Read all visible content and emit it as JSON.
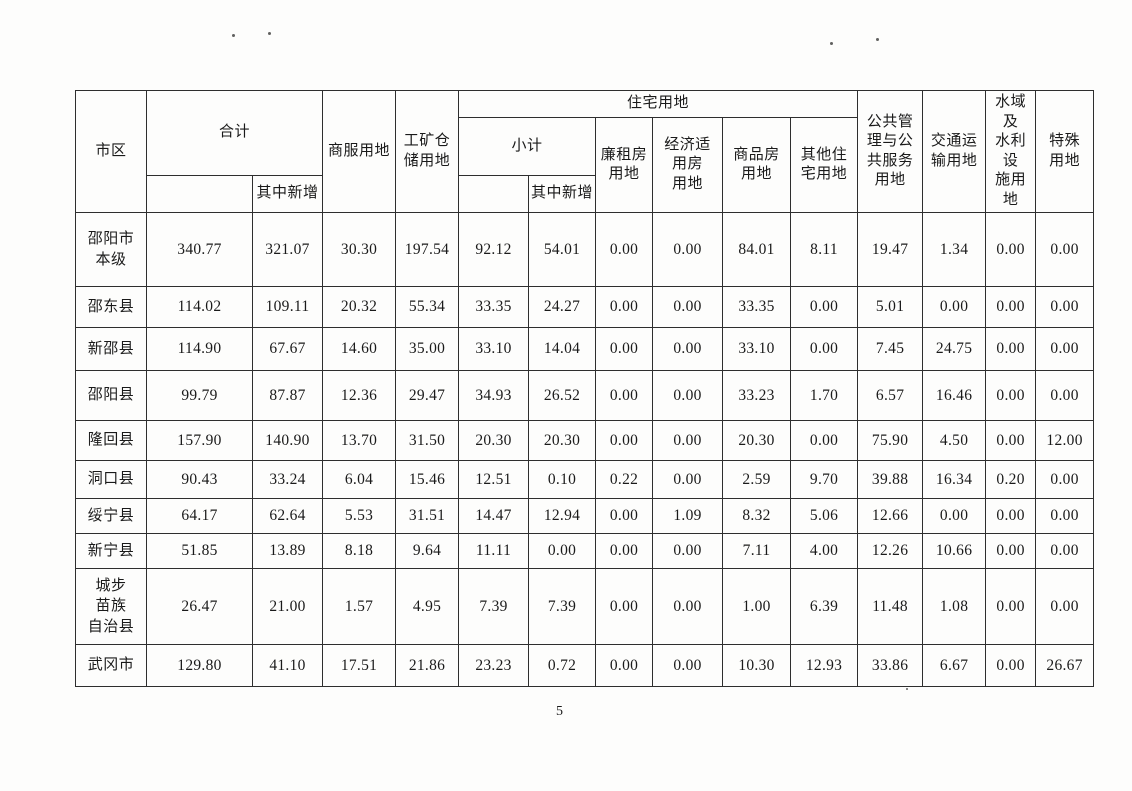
{
  "page": {
    "number": "5"
  },
  "table": {
    "header": {
      "region": "市区",
      "total": "合计",
      "total_new": "其中新增",
      "commercial": "商服用地",
      "industrial_storage": "工矿仓\n储用地",
      "residential": "住宅用地",
      "residential_subtotal": "小计",
      "residential_new": "其中新增",
      "low_rent_housing": "廉租房\n用地",
      "affordable_housing": "经济适\n用房\n用地",
      "commodity_housing": "商品房\n用地",
      "other_residential": "其他住\n宅用地",
      "public_admin_service": "公共管\n理与公\n共服务\n用地",
      "transportation": "交通运\n输用地",
      "water_facilities": "水域及\n水利设\n施用地",
      "special": "特殊\n用地"
    },
    "rows": [
      {
        "name": "邵阳市\n本级",
        "values": [
          "340.77",
          "321.07",
          "30.30",
          "197.54",
          "92.12",
          "54.01",
          "0.00",
          "0.00",
          "84.01",
          "8.11",
          "19.47",
          "1.34",
          "0.00",
          "0.00"
        ]
      },
      {
        "name": "邵东县",
        "values": [
          "114.02",
          "109.11",
          "20.32",
          "55.34",
          "33.35",
          "24.27",
          "0.00",
          "0.00",
          "33.35",
          "0.00",
          "5.01",
          "0.00",
          "0.00",
          "0.00"
        ]
      },
      {
        "name": "新邵县",
        "values": [
          "114.90",
          "67.67",
          "14.60",
          "35.00",
          "33.10",
          "14.04",
          "0.00",
          "0.00",
          "33.10",
          "0.00",
          "7.45",
          "24.75",
          "0.00",
          "0.00"
        ]
      },
      {
        "name": "邵阳县",
        "values": [
          "99.79",
          "87.87",
          "12.36",
          "29.47",
          "34.93",
          "26.52",
          "0.00",
          "0.00",
          "33.23",
          "1.70",
          "6.57",
          "16.46",
          "0.00",
          "0.00"
        ]
      },
      {
        "name": "隆回县",
        "values": [
          "157.90",
          "140.90",
          "13.70",
          "31.50",
          "20.30",
          "20.30",
          "0.00",
          "0.00",
          "20.30",
          "0.00",
          "75.90",
          "4.50",
          "0.00",
          "12.00"
        ]
      },
      {
        "name": "洞口县",
        "values": [
          "90.43",
          "33.24",
          "6.04",
          "15.46",
          "12.51",
          "0.10",
          "0.22",
          "0.00",
          "2.59",
          "9.70",
          "39.88",
          "16.34",
          "0.20",
          "0.00"
        ]
      },
      {
        "name": "绥宁县",
        "values": [
          "64.17",
          "62.64",
          "5.53",
          "31.51",
          "14.47",
          "12.94",
          "0.00",
          "1.09",
          "8.32",
          "5.06",
          "12.66",
          "0.00",
          "0.00",
          "0.00"
        ]
      },
      {
        "name": "新宁县",
        "values": [
          "51.85",
          "13.89",
          "8.18",
          "9.64",
          "11.11",
          "0.00",
          "0.00",
          "0.00",
          "7.11",
          "4.00",
          "12.26",
          "10.66",
          "0.00",
          "0.00"
        ]
      },
      {
        "name": "城步\n苗族\n自治县",
        "values": [
          "26.47",
          "21.00",
          "1.57",
          "4.95",
          "7.39",
          "7.39",
          "0.00",
          "0.00",
          "1.00",
          "6.39",
          "11.48",
          "1.08",
          "0.00",
          "0.00"
        ]
      },
      {
        "name": "武冈市",
        "values": [
          "129.80",
          "41.10",
          "17.51",
          "21.86",
          "23.23",
          "0.72",
          "0.00",
          "0.00",
          "10.30",
          "12.93",
          "33.86",
          "6.67",
          "0.00",
          "26.67"
        ]
      }
    ]
  }
}
